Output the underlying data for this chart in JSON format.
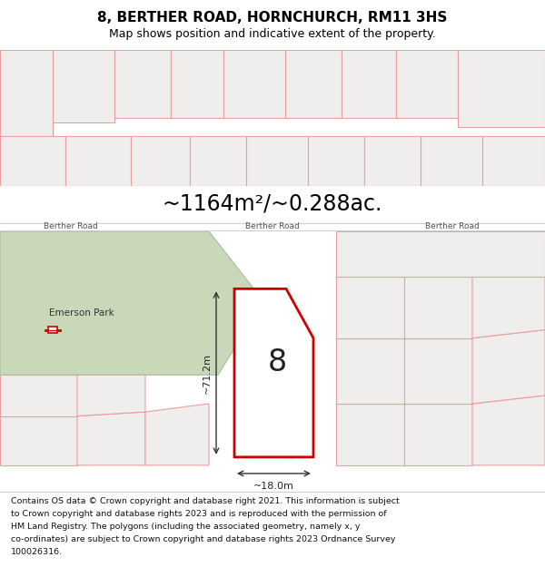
{
  "title": "8, BERTHER ROAD, HORNCHURCH, RM11 3HS",
  "subtitle": "Map shows position and indicative extent of the property.",
  "area_text": "~1164m²/~0.288ac.",
  "road_label": "Berther Road",
  "dim_width": "~18.0m",
  "dim_height": "~71.2m",
  "plot_number": "8",
  "emerson_park_label": "Emerson Park",
  "footer_lines": [
    "Contains OS data © Crown copyright and database right 2021. This information is subject",
    "to Crown copyright and database rights 2023 and is reproduced with the permission of",
    "HM Land Registry. The polygons (including the associated geometry, namely x, y",
    "co-ordinates) are subject to Crown copyright and database rights 2023 Ordnance Survey",
    "100026316."
  ],
  "map_bg": "#f0eded",
  "plot_fill": "#ffffff",
  "plot_edge": "#cc0000",
  "other_plot_edge": "#e8a0a0",
  "title_section_bg": "#ffffff",
  "area_section_bg": "#e0dfdf",
  "footer_bg": "#ffffff",
  "green_area_color": "#c8d8b8",
  "road_band_bg": "#dcdada"
}
